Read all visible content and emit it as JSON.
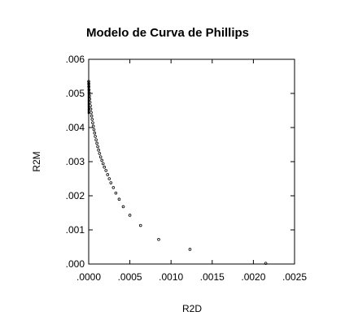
{
  "chart_data": {
    "type": "scatter",
    "title": "Modelo de Curva de Phillips",
    "xlabel": "R2D",
    "ylabel": "R2M",
    "xlim": [
      0,
      0.0025
    ],
    "ylim": [
      0,
      0.006
    ],
    "x_ticks": [
      ".0000",
      ".0005",
      ".0010",
      ".0015",
      ".0020",
      ".0025"
    ],
    "x_tick_values": [
      0,
      0.0005,
      0.001,
      0.0015,
      0.002,
      0.0025
    ],
    "y_ticks": [
      ".000",
      ".001",
      ".002",
      ".003",
      ".004",
      ".005",
      ".006"
    ],
    "y_tick_values": [
      0,
      0.001,
      0.002,
      0.003,
      0.004,
      0.005,
      0.006
    ],
    "grid": false,
    "marker": "open-circle",
    "marker_color": "#000000",
    "series": [
      {
        "x": [
          0,
          1e-06,
          2e-06,
          4e-06,
          6e-06,
          9e-06,
          1.2e-05,
          1.6e-05,
          2e-05,
          2.5e-05,
          3e-05,
          3.6e-05,
          4.2e-05,
          4.9e-05,
          5.6e-05,
          6.4e-05,
          7.2e-05,
          8e-05,
          9e-05,
          0.0001,
          0.00011,
          0.00012,
          0.000132,
          0.000145,
          0.00016,
          0.000175,
          0.00019,
          0.00021,
          0.00023,
          0.00025,
          0.00027,
          0.0003,
          0.00033,
          0.00037,
          0.00042,
          0.0005,
          0.00063,
          0.00085,
          0.00123,
          0.00215
        ],
        "y": [
          0.00535,
          0.00528,
          0.0052,
          0.00511,
          0.00502,
          0.00493,
          0.00484,
          0.00474,
          0.00464,
          0.00454,
          0.00444,
          0.00434,
          0.00424,
          0.00414,
          0.00404,
          0.00394,
          0.00384,
          0.00374,
          0.00364,
          0.00354,
          0.00344,
          0.00334,
          0.00324,
          0.00314,
          0.00304,
          0.00294,
          0.00284,
          0.00274,
          0.00262,
          0.0025,
          0.00238,
          0.00224,
          0.00208,
          0.0019,
          0.00168,
          0.00143,
          0.00113,
          0.00072,
          0.00043,
          2e-05
        ]
      }
    ]
  }
}
